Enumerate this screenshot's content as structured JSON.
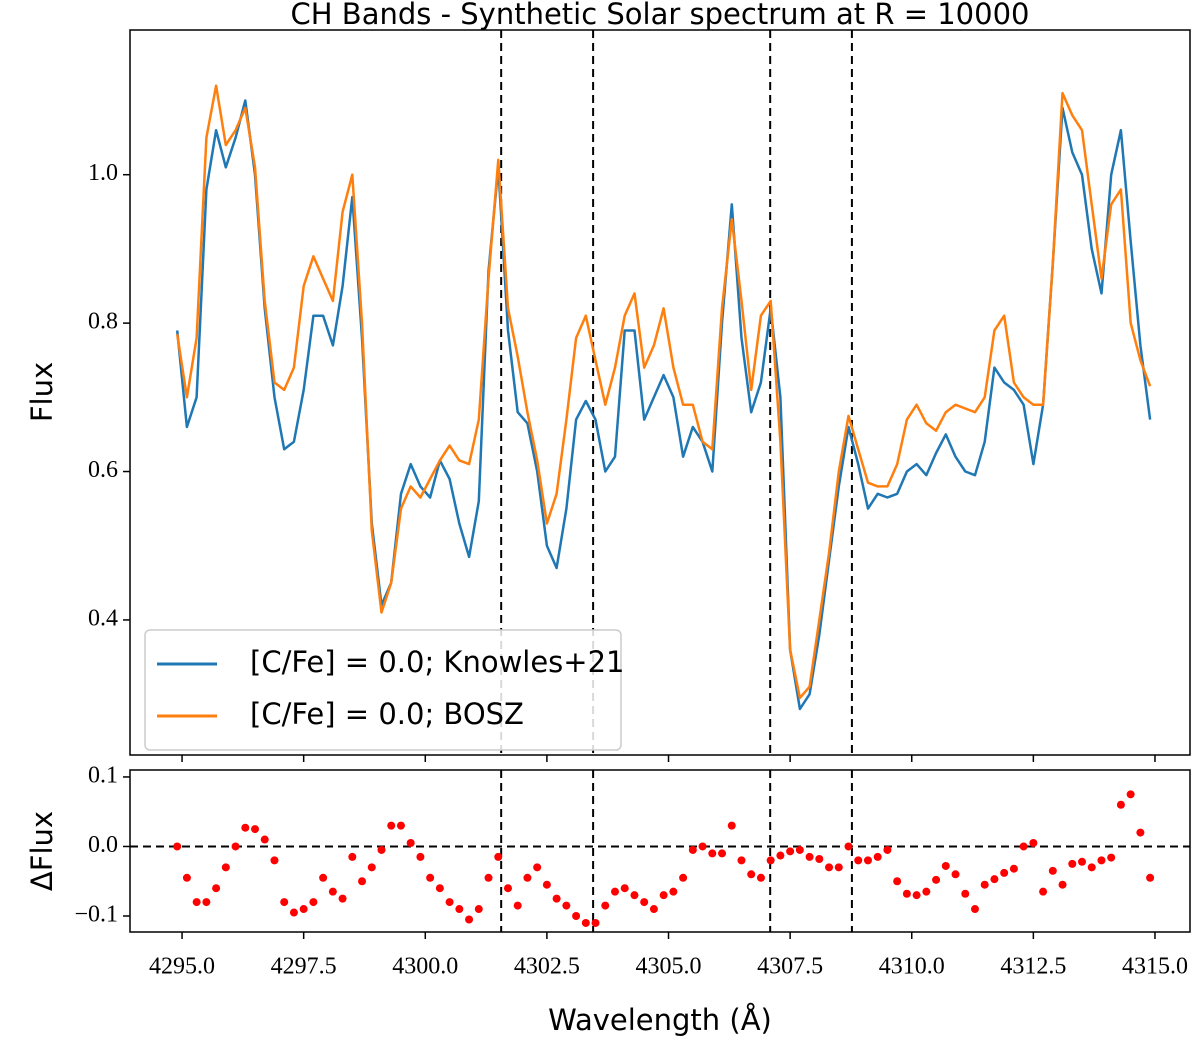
{
  "chart_data": [
    {
      "type": "line",
      "title": "CH Bands - Synthetic Solar spectrum at R = 10000",
      "ylabel": "Flux",
      "x": [
        4294.9,
        4295.1,
        4295.3,
        4295.5,
        4295.7,
        4295.9,
        4296.1,
        4296.3,
        4296.5,
        4296.7,
        4296.9,
        4297.1,
        4297.3,
        4297.5,
        4297.7,
        4297.9,
        4298.1,
        4298.3,
        4298.5,
        4298.7,
        4298.9,
        4299.1,
        4299.3,
        4299.5,
        4299.7,
        4299.9,
        4300.1,
        4300.3,
        4300.5,
        4300.7,
        4300.9,
        4301.1,
        4301.3,
        4301.5,
        4301.7,
        4301.9,
        4302.1,
        4302.3,
        4302.5,
        4302.7,
        4302.9,
        4303.1,
        4303.3,
        4303.5,
        4303.7,
        4303.9,
        4304.1,
        4304.3,
        4304.5,
        4304.7,
        4304.9,
        4305.1,
        4305.3,
        4305.5,
        4305.7,
        4305.9,
        4306.1,
        4306.3,
        4306.5,
        4306.7,
        4306.9,
        4307.1,
        4307.3,
        4307.5,
        4307.7,
        4307.9,
        4308.1,
        4308.3,
        4308.5,
        4308.7,
        4308.9,
        4309.1,
        4309.3,
        4309.5,
        4309.7,
        4309.9,
        4310.1,
        4310.3,
        4310.5,
        4310.7,
        4310.9,
        4311.1,
        4311.3,
        4311.5,
        4311.7,
        4311.9,
        4312.1,
        4312.3,
        4312.5,
        4312.7,
        4312.9,
        4313.1,
        4313.3,
        4313.5,
        4313.7,
        4313.9,
        4314.1,
        4314.3,
        4314.5,
        4314.7,
        4314.9
      ],
      "series": [
        {
          "name": "[C/Fe] = 0.0; Knowles+21",
          "color": "#1f77b4",
          "values": [
            0.79,
            0.66,
            0.7,
            0.98,
            1.06,
            1.01,
            1.05,
            1.1,
            1.0,
            0.82,
            0.7,
            0.63,
            0.64,
            0.71,
            0.81,
            0.81,
            0.77,
            0.85,
            0.97,
            0.78,
            0.53,
            0.42,
            0.45,
            0.57,
            0.61,
            0.58,
            0.565,
            0.615,
            0.59,
            0.53,
            0.485,
            0.56,
            0.87,
            1.01,
            0.79,
            0.68,
            0.665,
            0.6,
            0.5,
            0.47,
            0.55,
            0.67,
            0.695,
            0.67,
            0.6,
            0.62,
            0.79,
            0.79,
            0.67,
            0.7,
            0.73,
            0.7,
            0.62,
            0.66,
            0.64,
            0.6,
            0.8,
            0.96,
            0.78,
            0.68,
            0.72,
            0.82,
            0.7,
            0.36,
            0.28,
            0.3,
            0.38,
            0.48,
            0.58,
            0.66,
            0.61,
            0.55,
            0.57,
            0.565,
            0.57,
            0.6,
            0.61,
            0.595,
            0.625,
            0.65,
            0.62,
            0.6,
            0.595,
            0.64,
            0.74,
            0.72,
            0.71,
            0.69,
            0.61,
            0.69,
            0.88,
            1.09,
            1.03,
            1.0,
            0.9,
            0.84,
            1.0,
            1.06,
            0.91,
            0.77,
            0.67
          ]
        },
        {
          "name": "[C/Fe] = 0.0; BOSZ",
          "color": "#ff7f0e",
          "values": [
            0.785,
            0.7,
            0.78,
            1.05,
            1.12,
            1.04,
            1.06,
            1.09,
            1.01,
            0.83,
            0.72,
            0.71,
            0.74,
            0.85,
            0.89,
            0.86,
            0.83,
            0.95,
            1.0,
            0.8,
            0.52,
            0.41,
            0.45,
            0.55,
            0.58,
            0.565,
            0.59,
            0.615,
            0.635,
            0.615,
            0.61,
            0.67,
            0.86,
            1.02,
            0.82,
            0.755,
            0.68,
            0.615,
            0.53,
            0.57,
            0.67,
            0.78,
            0.81,
            0.75,
            0.69,
            0.74,
            0.81,
            0.84,
            0.74,
            0.77,
            0.82,
            0.74,
            0.69,
            0.69,
            0.64,
            0.63,
            0.82,
            0.94,
            0.83,
            0.71,
            0.81,
            0.83,
            0.64,
            0.36,
            0.295,
            0.31,
            0.4,
            0.49,
            0.6,
            0.675,
            0.63,
            0.585,
            0.58,
            0.58,
            0.61,
            0.67,
            0.69,
            0.665,
            0.655,
            0.68,
            0.69,
            0.685,
            0.68,
            0.7,
            0.79,
            0.81,
            0.72,
            0.7,
            0.69,
            0.69,
            0.88,
            1.11,
            1.08,
            1.06,
            0.96,
            0.86,
            0.96,
            0.98,
            0.8,
            0.75,
            0.715
          ]
        }
      ],
      "xlim": [
        4293.93,
        4315.72
      ],
      "ylim": [
        0.218,
        1.195
      ],
      "yticks": [
        0.4,
        0.6,
        0.8,
        {
          "value": 1,
          "label": "1.0"
        }
      ],
      "vlines": [
        4301.56,
        4303.45,
        4307.09,
        4308.77
      ],
      "legend": "lower left"
    },
    {
      "type": "scatter",
      "xlabel": "Wavelength (Å)",
      "ylabel": "ΔFlux",
      "color": "#ff0000",
      "x": [
        4294.9,
        4295.1,
        4295.3,
        4295.5,
        4295.7,
        4295.9,
        4296.1,
        4296.3,
        4296.5,
        4296.7,
        4296.9,
        4297.1,
        4297.3,
        4297.5,
        4297.7,
        4297.9,
        4298.1,
        4298.3,
        4298.5,
        4298.7,
        4298.9,
        4299.1,
        4299.3,
        4299.5,
        4299.7,
        4299.9,
        4300.1,
        4300.3,
        4300.5,
        4300.7,
        4300.9,
        4301.1,
        4301.3,
        4301.5,
        4301.7,
        4301.9,
        4302.1,
        4302.3,
        4302.5,
        4302.7,
        4302.9,
        4303.1,
        4303.3,
        4303.5,
        4303.7,
        4303.9,
        4304.1,
        4304.3,
        4304.5,
        4304.7,
        4304.9,
        4305.1,
        4305.3,
        4305.5,
        4305.7,
        4305.9,
        4306.1,
        4306.3,
        4306.5,
        4306.7,
        4306.9,
        4307.1,
        4307.3,
        4307.5,
        4307.7,
        4307.9,
        4308.1,
        4308.3,
        4308.5,
        4308.7,
        4308.9,
        4309.1,
        4309.3,
        4309.5,
        4309.7,
        4309.9,
        4310.1,
        4310.3,
        4310.5,
        4310.7,
        4310.9,
        4311.1,
        4311.3,
        4311.5,
        4311.7,
        4311.9,
        4312.1,
        4312.3,
        4312.5,
        4312.7,
        4312.9,
        4313.1,
        4313.3,
        4313.5,
        4313.7,
        4313.9,
        4314.1,
        4314.3,
        4314.5,
        4314.7,
        4314.9
      ],
      "values": [
        0.0,
        -0.045,
        -0.08,
        -0.08,
        -0.06,
        -0.03,
        0.0,
        0.027,
        0.025,
        0.01,
        -0.02,
        -0.08,
        -0.095,
        -0.09,
        -0.08,
        -0.045,
        -0.065,
        -0.075,
        -0.015,
        -0.05,
        -0.03,
        -0.005,
        0.03,
        0.03,
        0.005,
        -0.015,
        -0.045,
        -0.06,
        -0.08,
        -0.09,
        -0.105,
        -0.09,
        -0.045,
        -0.015,
        -0.06,
        -0.085,
        -0.045,
        -0.03,
        -0.055,
        -0.075,
        -0.085,
        -0.1,
        -0.11,
        -0.11,
        -0.085,
        -0.065,
        -0.06,
        -0.07,
        -0.08,
        -0.09,
        -0.07,
        -0.065,
        -0.045,
        -0.005,
        0.0,
        -0.01,
        -0.01,
        0.03,
        -0.02,
        -0.04,
        -0.045,
        -0.02,
        -0.013,
        -0.007,
        -0.005,
        -0.015,
        -0.018,
        -0.03,
        -0.03,
        0.0,
        -0.02,
        -0.02,
        -0.015,
        -0.005,
        -0.05,
        -0.068,
        -0.07,
        -0.065,
        -0.048,
        -0.028,
        -0.04,
        -0.068,
        -0.09,
        -0.055,
        -0.047,
        -0.038,
        -0.032,
        0.0,
        0.005,
        -0.065,
        -0.035,
        -0.055,
        -0.025,
        -0.022,
        -0.03,
        -0.02,
        -0.016,
        0.06,
        0.075,
        0.02,
        -0.045
      ],
      "xlim": [
        4293.93,
        4315.72
      ],
      "ylim": [
        -0.123,
        0.11
      ],
      "yticks": [
        0.1,
        {
          "value": 0,
          "label": "0.0"
        },
        {
          "value": -0.1,
          "label": "−0.1"
        }
      ],
      "xticks": [
        {
          "value": 4295,
          "label": "4295.0"
        },
        {
          "value": 4297.5,
          "label": "4297.5"
        },
        {
          "value": 4300,
          "label": "4300.0"
        },
        {
          "value": 4302.5,
          "label": "4302.5"
        },
        {
          "value": 4305,
          "label": "4305.0"
        },
        {
          "value": 4307.5,
          "label": "4307.5"
        },
        {
          "value": 4310,
          "label": "4310.0"
        },
        {
          "value": 4312.5,
          "label": "4312.5"
        },
        {
          "value": 4315,
          "label": "4315.0"
        }
      ],
      "hline": 0
    }
  ]
}
